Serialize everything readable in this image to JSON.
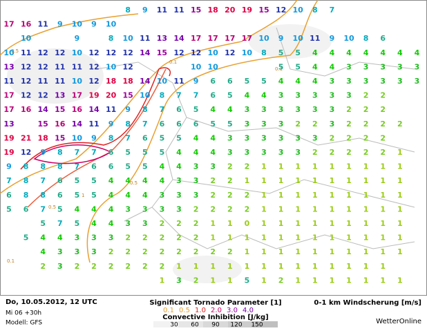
{
  "wind_shear": {
    "rows": [
      [
        null,
        null,
        null,
        null,
        null,
        null,
        null,
        8,
        9,
        11,
        11,
        15,
        18,
        20,
        19,
        15,
        12,
        10,
        8,
        7,
        null,
        null,
        null,
        null,
        null
      ],
      [
        17,
        16,
        11,
        9,
        10,
        9,
        10,
        null,
        null,
        null,
        null,
        null,
        null,
        null,
        null,
        null,
        null,
        null,
        null,
        null,
        null,
        null,
        null,
        null,
        null
      ],
      [
        null,
        10,
        null,
        null,
        9,
        null,
        8,
        10,
        11,
        13,
        14,
        17,
        17,
        17,
        17,
        10,
        9,
        10,
        11,
        9,
        10,
        8,
        6,
        null,
        null
      ],
      [
        10,
        11,
        12,
        12,
        10,
        12,
        12,
        12,
        14,
        15,
        12,
        12,
        10,
        12,
        10,
        8,
        5,
        5,
        4,
        4,
        4,
        4,
        4,
        4,
        4
      ],
      [
        13,
        12,
        12,
        11,
        11,
        12,
        10,
        12,
        null,
        null,
        null,
        10,
        10,
        null,
        null,
        null,
        5,
        5,
        4,
        4,
        3,
        3,
        3,
        3,
        3
      ],
      [
        11,
        12,
        11,
        11,
        10,
        12,
        18,
        18,
        14,
        10,
        11,
        9,
        6,
        6,
        5,
        5,
        4,
        4,
        4,
        3,
        3,
        3,
        3,
        3,
        3
      ],
      [
        17,
        12,
        12,
        13,
        17,
        19,
        20,
        15,
        10,
        8,
        7,
        7,
        6,
        5,
        4,
        4,
        3,
        3,
        3,
        3,
        3,
        2,
        2,
        null,
        null
      ],
      [
        17,
        16,
        14,
        15,
        16,
        14,
        11,
        9,
        8,
        7,
        6,
        5,
        4,
        4,
        3,
        3,
        3,
        3,
        3,
        3,
        2,
        2,
        2,
        null,
        null
      ],
      [
        13,
        null,
        15,
        16,
        14,
        11,
        9,
        8,
        7,
        6,
        6,
        6,
        5,
        5,
        3,
        3,
        3,
        2,
        2,
        3,
        2,
        2,
        2,
        2,
        null
      ],
      [
        19,
        21,
        18,
        15,
        10,
        9,
        8,
        7,
        6,
        5,
        5,
        4,
        4,
        3,
        3,
        3,
        3,
        3,
        3,
        2,
        2,
        2,
        2,
        null,
        null
      ],
      [
        19,
        12,
        9,
        8,
        7,
        7,
        6,
        5,
        5,
        5,
        4,
        4,
        4,
        3,
        3,
        3,
        3,
        3,
        2,
        2,
        2,
        2,
        2,
        1,
        null
      ],
      [
        9,
        8,
        8,
        8,
        7,
        6,
        6,
        5,
        5,
        4,
        4,
        3,
        3,
        2,
        2,
        1,
        1,
        1,
        1,
        1,
        1,
        1,
        1,
        1,
        null
      ],
      [
        7,
        8,
        7,
        6,
        5,
        5,
        4,
        4,
        4,
        4,
        3,
        3,
        2,
        2,
        1,
        1,
        1,
        1,
        1,
        1,
        1,
        1,
        1,
        1,
        null
      ],
      [
        6,
        8,
        8,
        6,
        5,
        5,
        4,
        4,
        4,
        3,
        3,
        3,
        2,
        2,
        2,
        1,
        1,
        1,
        1,
        1,
        1,
        1,
        1,
        1,
        null
      ],
      [
        5,
        6,
        7,
        5,
        4,
        4,
        4,
        3,
        3,
        3,
        3,
        2,
        2,
        2,
        2,
        1,
        1,
        1,
        1,
        1,
        1,
        1,
        1,
        1,
        null
      ],
      [
        null,
        null,
        5,
        7,
        5,
        4,
        4,
        3,
        3,
        2,
        2,
        2,
        1,
        1,
        0,
        1,
        1,
        1,
        1,
        1,
        1,
        1,
        1,
        1,
        null
      ],
      [
        null,
        5,
        4,
        4,
        3,
        3,
        3,
        2,
        2,
        2,
        2,
        2,
        1,
        1,
        1,
        1,
        1,
        1,
        1,
        1,
        1,
        1,
        1,
        1,
        null
      ],
      [
        null,
        null,
        4,
        3,
        3,
        3,
        2,
        2,
        2,
        2,
        2,
        2,
        2,
        2,
        1,
        1,
        1,
        1,
        1,
        1,
        1,
        1,
        1,
        1,
        null
      ],
      [
        null,
        null,
        2,
        3,
        2,
        2,
        2,
        2,
        2,
        2,
        1,
        1,
        1,
        1,
        1,
        1,
        1,
        1,
        1,
        1,
        1,
        1,
        1,
        null,
        null
      ],
      [
        null,
        null,
        null,
        null,
        null,
        null,
        null,
        null,
        null,
        1,
        3,
        2,
        1,
        1,
        5,
        1,
        2,
        1,
        1,
        1,
        1,
        1,
        1,
        1,
        null
      ]
    ]
  },
  "contour_labels": [
    "0.5",
    "0.1",
    "0.1",
    "0.5",
    "1",
    "0.5",
    "0.1"
  ],
  "footer": {
    "date": "Do, 10.05.2012, 12 UTC",
    "run": "Mi 06 +30h",
    "model": "Modell: GFS",
    "stp_title": "Significant Tornado Parameter [1]",
    "stp_levels": [
      "0.1",
      "0.5",
      "1.0",
      "2.0",
      "3.0",
      "4.0"
    ],
    "cin_title": "Convective Inhibition [J/kg]",
    "cin_levels": [
      30,
      60,
      90,
      120,
      150
    ],
    "shear_title": "0-1 km Windscherung [m/s]",
    "brand": "WetterOnline"
  }
}
